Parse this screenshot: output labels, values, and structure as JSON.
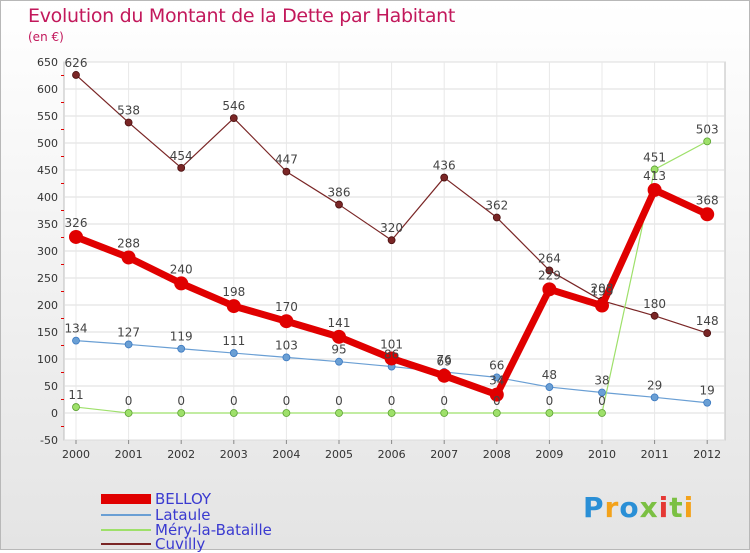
{
  "header": {
    "title": "Evolution du Montant de la Dette par Habitant",
    "unit": "(en €)"
  },
  "logo": {
    "text": "Proxiti",
    "colors": [
      "#2a8fd6",
      "#f3a21b",
      "#2a8fd6",
      "#7bc043",
      "#e53935",
      "#7bc043",
      "#f3a21b"
    ]
  },
  "chart_data": {
    "type": "line",
    "x": [
      "2000",
      "2001",
      "2002",
      "2003",
      "2004",
      "2005",
      "2006",
      "2007",
      "2008",
      "2009",
      "2010",
      "2011",
      "2012"
    ],
    "ylim": [
      -50,
      650
    ],
    "yticks": [
      -50,
      0,
      50,
      100,
      150,
      200,
      250,
      300,
      350,
      400,
      450,
      500,
      550,
      600,
      650
    ],
    "grid": true,
    "legend_position": "bottom-left",
    "series": [
      {
        "name": "BELLOY",
        "color": "#e00000",
        "values": [
          326,
          288,
          240,
          198,
          170,
          141,
          101,
          69,
          34,
          229,
          199,
          413,
          368
        ],
        "labels": [
          "326",
          "288",
          "240",
          "198",
          "170",
          "141",
          "101",
          "69",
          "34",
          "229",
          "199",
          "413",
          "368"
        ]
      },
      {
        "name": "Lataule",
        "color": "#6a9fd4",
        "values": [
          134,
          127,
          119,
          111,
          103,
          95,
          86,
          76,
          66,
          48,
          38,
          29,
          19
        ],
        "labels": [
          "134",
          "127",
          "119",
          "111",
          "103",
          "95",
          "86",
          "76",
          "66",
          "48",
          "38",
          "29",
          "19"
        ]
      },
      {
        "name": "Méry-la-Bataille",
        "color": "#9ee06a",
        "values": [
          11,
          0,
          0,
          0,
          0,
          0,
          0,
          0,
          0,
          0,
          0,
          451,
          503
        ],
        "labels": [
          "11",
          "0",
          "0",
          "0",
          "0",
          "0",
          "0",
          "0",
          "0",
          "0",
          "0",
          "451",
          "503"
        ]
      },
      {
        "name": "Cuvilly",
        "color": "#7a2626",
        "values": [
          626,
          538,
          454,
          546,
          447,
          386,
          320,
          436,
          362,
          264,
          208,
          180,
          148
        ],
        "labels": [
          "626",
          "538",
          "454",
          "546",
          "447",
          "386",
          "320",
          "436",
          "362",
          "264",
          "208",
          "180",
          "148"
        ]
      }
    ]
  }
}
